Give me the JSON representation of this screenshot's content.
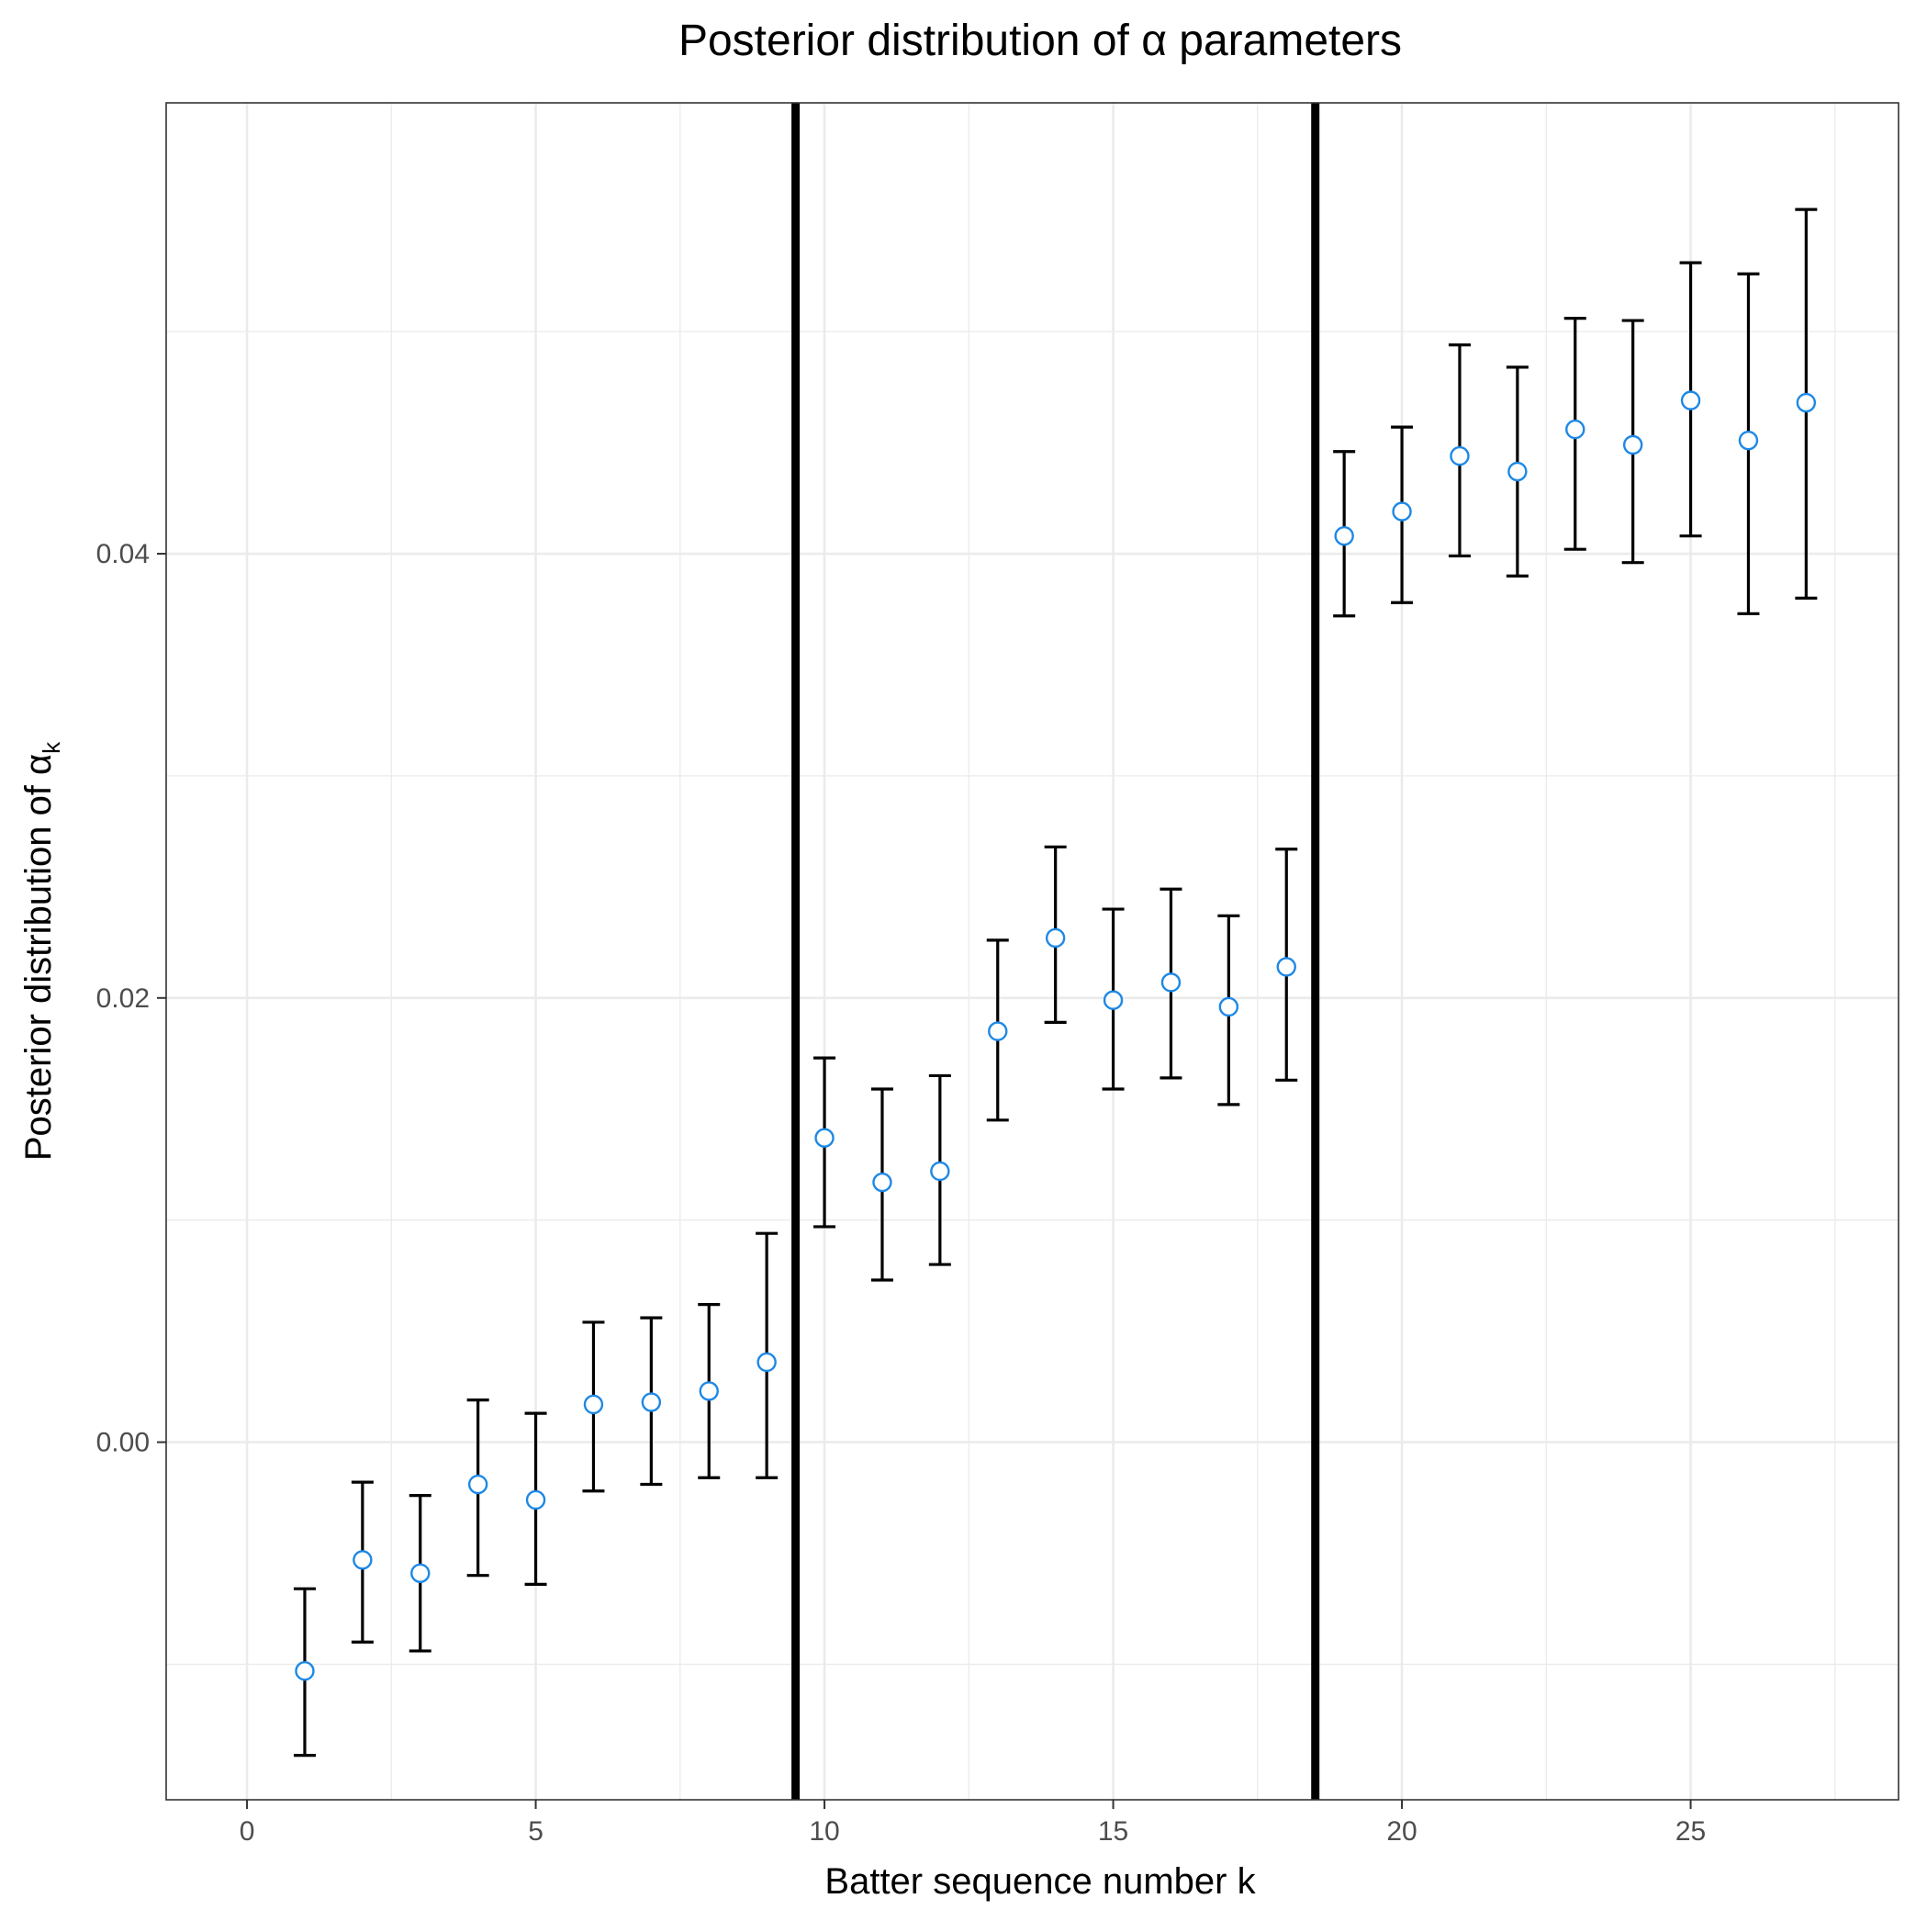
{
  "chart_data": {
    "type": "scatter",
    "title": "Posterior distribution of α parameters",
    "xlabel": "Batter sequence number k",
    "ylabel_main": "Posterior distribution of α",
    "ylabel_sub": "k",
    "xlim": [
      -1.4,
      28.6
    ],
    "ylim": [
      -0.0161,
      0.0603
    ],
    "x_ticks": [
      0,
      5,
      10,
      15,
      20,
      25
    ],
    "x_tick_labels": [
      "0",
      "5",
      "10",
      "15",
      "20",
      "25"
    ],
    "y_ticks": [
      0.0,
      0.02,
      0.04
    ],
    "y_tick_labels": [
      "0.00",
      "0.02",
      "0.04"
    ],
    "x_minor_ticks": [
      2.5,
      7.5,
      12.5,
      17.5,
      22.5,
      27.5
    ],
    "y_minor_ticks": [
      -0.01,
      0.01,
      0.03,
      0.05
    ],
    "grid": true,
    "vertical_lines": [
      9.5,
      18.5
    ],
    "point_color": "#1E88E5",
    "errorbar_color": "#000000",
    "points": [
      {
        "k": 1,
        "mean": -0.0103,
        "lower": -0.0141,
        "upper": -0.0066
      },
      {
        "k": 2,
        "mean": -0.0053,
        "lower": -0.009,
        "upper": -0.0018
      },
      {
        "k": 3,
        "mean": -0.0059,
        "lower": -0.0094,
        "upper": -0.0024
      },
      {
        "k": 4,
        "mean": -0.0019,
        "lower": -0.006,
        "upper": 0.0019
      },
      {
        "k": 5,
        "mean": -0.0026,
        "lower": -0.0064,
        "upper": 0.0013
      },
      {
        "k": 6,
        "mean": 0.0017,
        "lower": -0.0022,
        "upper": 0.0054
      },
      {
        "k": 7,
        "mean": 0.0018,
        "lower": -0.0019,
        "upper": 0.0056
      },
      {
        "k": 8,
        "mean": 0.0023,
        "lower": -0.0016,
        "upper": 0.0062
      },
      {
        "k": 9,
        "mean": 0.0036,
        "lower": -0.0016,
        "upper": 0.0094
      },
      {
        "k": 10,
        "mean": 0.0137,
        "lower": 0.0097,
        "upper": 0.0173
      },
      {
        "k": 11,
        "mean": 0.0117,
        "lower": 0.0073,
        "upper": 0.0159
      },
      {
        "k": 12,
        "mean": 0.0122,
        "lower": 0.008,
        "upper": 0.0165
      },
      {
        "k": 13,
        "mean": 0.0185,
        "lower": 0.0145,
        "upper": 0.0226
      },
      {
        "k": 14,
        "mean": 0.0227,
        "lower": 0.0189,
        "upper": 0.0268
      },
      {
        "k": 15,
        "mean": 0.0199,
        "lower": 0.0159,
        "upper": 0.024
      },
      {
        "k": 16,
        "mean": 0.0207,
        "lower": 0.0164,
        "upper": 0.0249
      },
      {
        "k": 17,
        "mean": 0.0196,
        "lower": 0.0152,
        "upper": 0.0237
      },
      {
        "k": 18,
        "mean": 0.0214,
        "lower": 0.0163,
        "upper": 0.0267
      },
      {
        "k": 19,
        "mean": 0.0408,
        "lower": 0.0372,
        "upper": 0.0446
      },
      {
        "k": 20,
        "mean": 0.0419,
        "lower": 0.0378,
        "upper": 0.0457
      },
      {
        "k": 21,
        "mean": 0.0444,
        "lower": 0.0399,
        "upper": 0.0494
      },
      {
        "k": 22,
        "mean": 0.0437,
        "lower": 0.039,
        "upper": 0.0484
      },
      {
        "k": 23,
        "mean": 0.0456,
        "lower": 0.0402,
        "upper": 0.0506
      },
      {
        "k": 24,
        "mean": 0.0449,
        "lower": 0.0396,
        "upper": 0.0505
      },
      {
        "k": 25,
        "mean": 0.0469,
        "lower": 0.0408,
        "upper": 0.0531
      },
      {
        "k": 26,
        "mean": 0.0451,
        "lower": 0.0373,
        "upper": 0.0526
      },
      {
        "k": 27,
        "mean": 0.0468,
        "lower": 0.038,
        "upper": 0.0555
      }
    ]
  }
}
